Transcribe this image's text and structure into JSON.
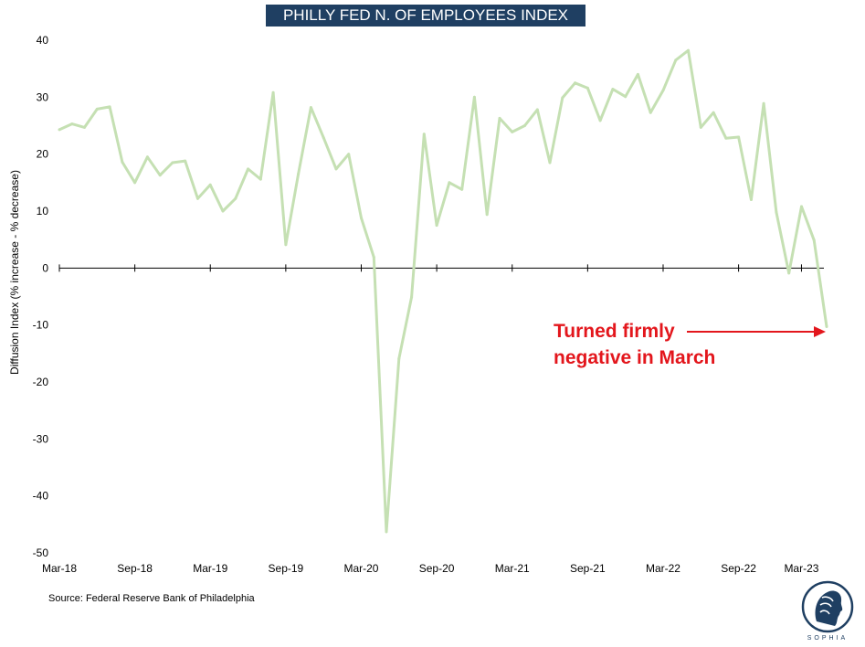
{
  "chart_data": {
    "type": "line",
    "title": "PHILLY FED N. OF EMPLOYEES INDEX",
    "ylabel": "Diffusion Index (% increase - % decrease)",
    "xlabel": "",
    "ylim": [
      -50,
      40
    ],
    "yticks": [
      40,
      30,
      20,
      10,
      0,
      -10,
      -20,
      -30,
      -40,
      -50
    ],
    "xtick_labels": [
      "Mar-18",
      "Sep-18",
      "Mar-19",
      "Sep-19",
      "Mar-20",
      "Sep-20",
      "Mar-21",
      "Sep-21",
      "Mar-22",
      "Sep-22",
      "Mar-23"
    ],
    "grid": false,
    "series": [
      {
        "color": "#c5e0b3",
        "values": [
          24.3,
          25.3,
          24.7,
          27.9,
          28.3,
          18.6,
          15.0,
          19.5,
          16.3,
          18.5,
          18.8,
          12.2,
          14.6,
          10.0,
          12.2,
          17.4,
          15.6,
          30.8,
          4.1,
          16.5,
          28.2,
          22.9,
          17.4,
          20.0,
          8.8,
          1.9,
          -46.3,
          -15.9,
          -5.1,
          23.5,
          7.5,
          15.0,
          13.8,
          30.0,
          9.4,
          26.3,
          23.9,
          25.0,
          27.8,
          18.5,
          29.9,
          32.5,
          31.6,
          25.9,
          31.4,
          30.1,
          34.0,
          27.3,
          31.2,
          36.5,
          38.2,
          24.7,
          27.3,
          22.8,
          23.0,
          12.0,
          28.9,
          9.8,
          -0.9,
          10.8,
          4.9,
          -10.3
        ]
      }
    ],
    "annotation": {
      "lines": [
        "Turned firmly",
        "negative in March"
      ],
      "color": "#e3161c"
    }
  },
  "source": "Source: Federal Reserve Bank of Philadelphia",
  "logo_text": "SOPHIA"
}
